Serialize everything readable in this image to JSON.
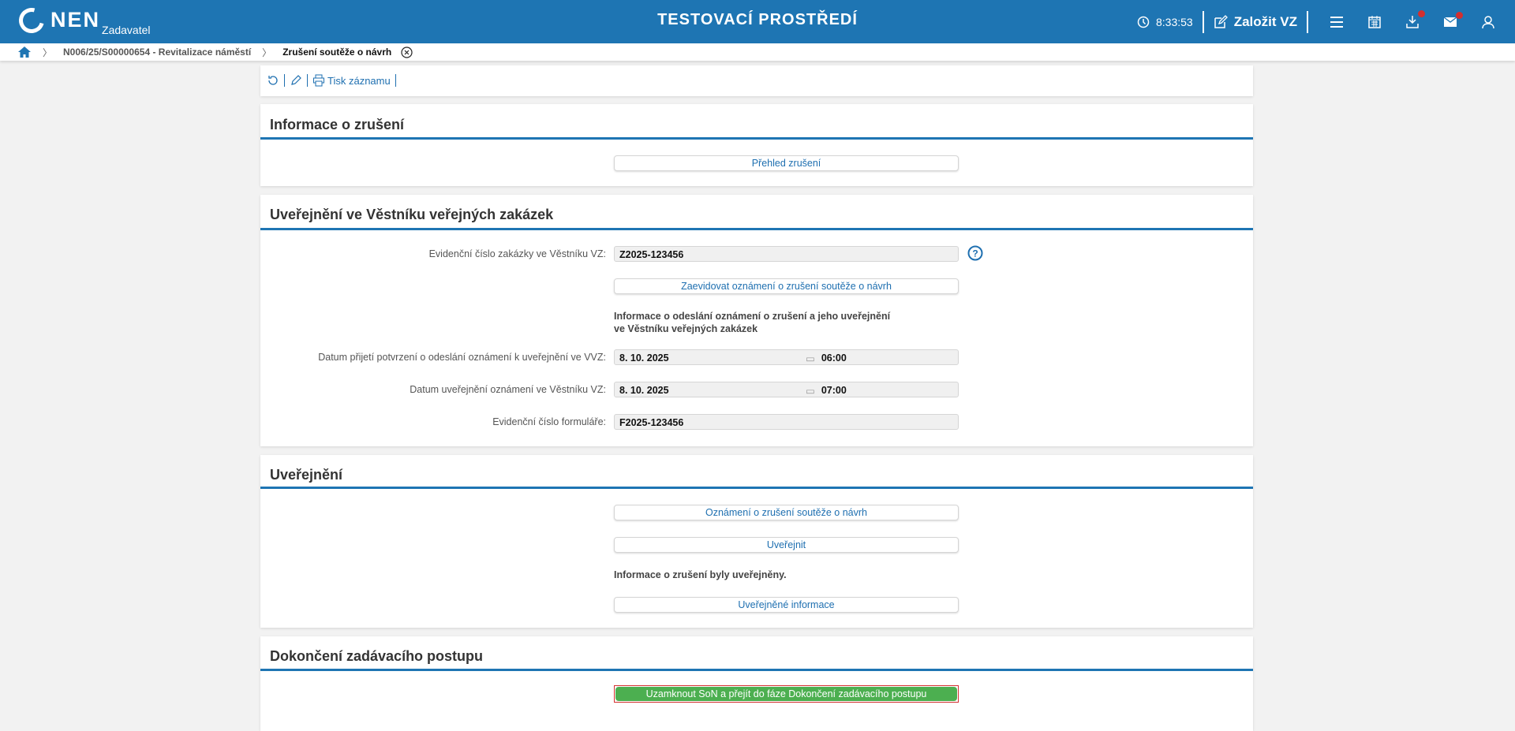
{
  "header": {
    "logo": "NEN",
    "logo_sub": "Zadavatel",
    "title": "TESTOVACÍ PROSTŘEDÍ",
    "time": "8:33:53",
    "create_label": "Založit VZ",
    "notification_color": "#d32f2f",
    "brand_color": "#1e75b3"
  },
  "breadcrumb": {
    "items": [
      "N006/25/S00000654 - Revitalizace náměstí",
      "Zrušení soutěže o návrh"
    ]
  },
  "toolbar": {
    "print_label": "Tisk záznamu"
  },
  "sections": {
    "info": {
      "title": "Informace o zrušení",
      "overview_button": "Přehled zrušení"
    },
    "vestnik": {
      "title": "Uveřejnění ve Věstníku veřejných zakázek",
      "evid_label": "Evidenční číslo zakázky ve Věstníku VZ:",
      "evid_value": "Z2025-123456",
      "register_button": "Zaevidovat oznámení o zrušení soutěže o návrh",
      "info_text_1": "Informace o odeslání oznámení o zrušení a jeho uveřejnění",
      "info_text_2": "ve Věstníku veřejných zakázek",
      "received_label": "Datum přijetí potvrzení o odeslání oznámení k uveřejnění ve VVZ:",
      "received_date": "8. 10. 2025",
      "received_time": "06:00",
      "published_label": "Datum uveřejnění oznámení ve Věstníku VZ:",
      "published_date": "8. 10. 2025",
      "published_time": "07:00",
      "form_label": "Evidenční číslo formuláře:",
      "form_value": "F2025-123456"
    },
    "publish": {
      "title": "Uveřejnění",
      "notice_button": "Oznámení o zrušení soutěže o návrh",
      "publish_button": "Uveřejnit",
      "status_text": "Informace o zrušení byly uveřejněny.",
      "published_info_button": "Uveřejněné informace"
    },
    "finish": {
      "title": "Dokončení zadávacího postupu",
      "lock_button": "Uzamknout SoN a přejít do fáze Dokončení zadávacího postupu",
      "lock_button_color": "#4caf50"
    }
  }
}
